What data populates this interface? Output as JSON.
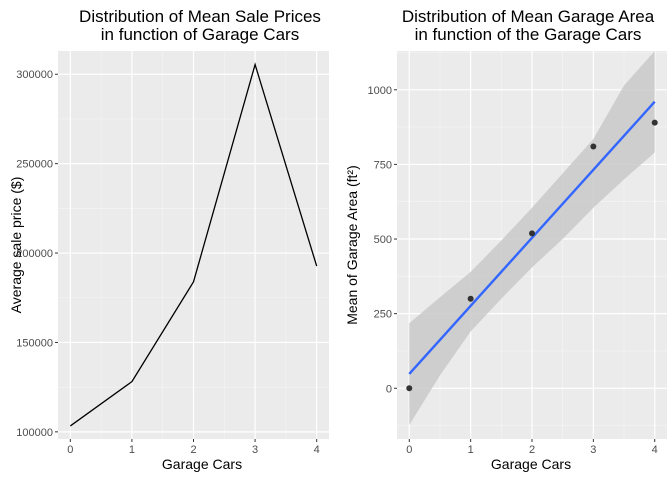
{
  "chart_data": [
    {
      "type": "line",
      "title_lines": [
        "Distribution of Mean Sale Prices",
        "in function of Garage Cars"
      ],
      "xlabel": "Garage Cars",
      "ylabel": "Average sale price ($)",
      "x": [
        0,
        1,
        2,
        3,
        4
      ],
      "y": [
        103300,
        128100,
        183900,
        305400,
        192700
      ],
      "xlim": [
        -0.2,
        4.2
      ],
      "ylim": [
        96000,
        313000
      ],
      "xticks": [
        0,
        1,
        2,
        3,
        4
      ],
      "yticks": [
        100000,
        150000,
        200000,
        250000,
        300000
      ],
      "ytick_labels": [
        "100000",
        "150000",
        "200000",
        "250000",
        "300000"
      ],
      "line_color": "#000000",
      "panel_color": "#ebebeb",
      "grid": true
    },
    {
      "type": "scatter",
      "title_lines": [
        "Distribution of Mean Garage Area",
        "in function of the Garage Cars"
      ],
      "xlabel": "Garage Cars",
      "ylabel": "Mean of Garage Area (ft²)",
      "x": [
        0,
        1,
        2,
        3,
        4
      ],
      "y": [
        0,
        300,
        519,
        810,
        890
      ],
      "fit": {
        "x": [
          0,
          4
        ],
        "y": [
          48,
          960
        ]
      },
      "band": {
        "x": [
          0,
          0.5,
          1,
          1.5,
          2,
          2.5,
          3,
          3.5,
          4
        ],
        "lower": [
          -123,
          43,
          190,
          300,
          405,
          500,
          605,
          700,
          790
        ],
        "upper": [
          218,
          305,
          390,
          495,
          605,
          720,
          835,
          1015,
          1130
        ]
      },
      "xlim": [
        -0.2,
        4.2
      ],
      "ylim": [
        -170,
        1130
      ],
      "xticks": [
        0,
        1,
        2,
        3,
        4
      ],
      "yticks": [
        0,
        250,
        500,
        750,
        1000
      ],
      "ytick_labels": [
        "0",
        "250",
        "500",
        "750",
        "1000"
      ],
      "point_color": "#333333",
      "fit_color": "#3366ff",
      "band_color": "#c9c9c9",
      "panel_color": "#ebebeb",
      "grid": true
    }
  ]
}
